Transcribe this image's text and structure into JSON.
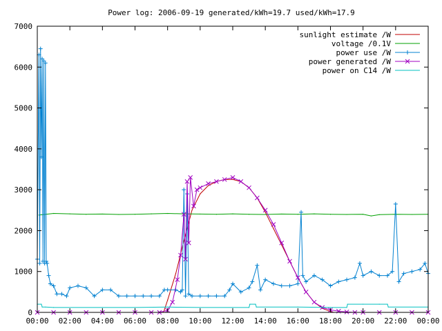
{
  "chart_data": {
    "type": "line",
    "title": "Power log: 2006-09-19 generated/kWh=19.7 used/kWh=17.9",
    "xlabel": "",
    "ylabel": "",
    "x_range": [
      "00:00",
      "24:00"
    ],
    "ylim": [
      0,
      7000
    ],
    "grid": false,
    "legend_position": "top-right",
    "x_ticks": [
      "00:00",
      "02:00",
      "04:00",
      "06:00",
      "08:00",
      "10:00",
      "12:00",
      "14:00",
      "16:00",
      "18:00",
      "20:00",
      "22:00",
      "00:00"
    ],
    "y_ticks": [
      0,
      1000,
      2000,
      3000,
      4000,
      5000,
      6000,
      7000
    ],
    "series": [
      {
        "name": "sunlight estimate /W",
        "color": "#c00000",
        "marker": "none",
        "x": [
          7.75,
          8.0,
          8.5,
          9.0,
          9.5,
          10.0,
          10.5,
          11.0,
          11.5,
          12.0,
          12.5,
          13.0,
          13.5,
          14.0,
          14.5,
          15.0,
          15.5,
          16.0,
          16.5,
          17.0,
          17.5,
          18.0,
          18.2
        ],
        "values": [
          0,
          300,
          950,
          1750,
          2500,
          2900,
          3100,
          3200,
          3250,
          3250,
          3200,
          3050,
          2800,
          2450,
          2050,
          1650,
          1250,
          850,
          500,
          250,
          100,
          20,
          0
        ]
      },
      {
        "name": "voltage /0.1V",
        "color": "#00a000",
        "marker": "none",
        "x": [
          0.1,
          1.0,
          2.0,
          3.0,
          4.0,
          5.0,
          6.0,
          7.0,
          8.0,
          9.0,
          10.0,
          11.0,
          12.0,
          13.0,
          14.0,
          15.0,
          16.0,
          17.0,
          18.0,
          19.0,
          20.0,
          20.5,
          21.0,
          22.0,
          23.0,
          24.0
        ],
        "values": [
          2380,
          2420,
          2410,
          2400,
          2405,
          2395,
          2400,
          2410,
          2420,
          2410,
          2405,
          2400,
          2410,
          2400,
          2395,
          2405,
          2400,
          2410,
          2400,
          2395,
          2400,
          2360,
          2390,
          2400,
          2395,
          2400
        ]
      },
      {
        "name": "power use /W",
        "color": "#0080d0",
        "marker": "plus",
        "x": [
          0.0,
          0.1,
          0.15,
          0.2,
          0.25,
          0.3,
          0.35,
          0.4,
          0.45,
          0.5,
          0.55,
          0.6,
          0.7,
          0.8,
          1.0,
          1.2,
          1.5,
          1.8,
          2.0,
          2.5,
          3.0,
          3.5,
          4.0,
          4.5,
          5.0,
          5.5,
          6.0,
          6.5,
          7.0,
          7.5,
          7.8,
          8.0,
          8.5,
          8.8,
          8.9,
          9.0,
          9.1,
          9.2,
          9.3,
          9.5,
          10.0,
          10.5,
          11.0,
          11.5,
          11.8,
          12.0,
          12.5,
          13.0,
          13.2,
          13.5,
          13.7,
          14.0,
          14.5,
          15.0,
          15.5,
          16.0,
          16.2,
          16.3,
          16.5,
          17.0,
          17.5,
          18.0,
          18.5,
          19.0,
          19.5,
          19.8,
          20.0,
          20.5,
          21.0,
          21.5,
          21.8,
          22.0,
          22.2,
          22.5,
          23.0,
          23.5,
          23.8,
          24.0
        ],
        "values": [
          1300,
          6300,
          1200,
          6450,
          3800,
          6200,
          1250,
          6150,
          1200,
          6100,
          1250,
          1200,
          900,
          700,
          650,
          450,
          450,
          400,
          600,
          650,
          600,
          400,
          550,
          550,
          400,
          400,
          400,
          400,
          400,
          400,
          550,
          550,
          550,
          500,
          550,
          3000,
          400,
          2900,
          450,
          400,
          400,
          400,
          400,
          400,
          550,
          700,
          500,
          600,
          750,
          1150,
          550,
          800,
          700,
          650,
          650,
          700,
          2450,
          900,
          750,
          900,
          800,
          650,
          750,
          800,
          850,
          1200,
          900,
          1000,
          900,
          900,
          1000,
          2650,
          750,
          950,
          1000,
          1050,
          1200,
          950
        ]
      },
      {
        "name": "power generated /W",
        "color": "#a000c0",
        "marker": "cross",
        "x": [
          0.0,
          1.0,
          2.0,
          3.0,
          4.0,
          5.0,
          6.0,
          7.0,
          7.5,
          8.0,
          8.3,
          8.6,
          8.8,
          9.0,
          9.1,
          9.2,
          9.3,
          9.4,
          9.6,
          9.8,
          10.0,
          10.5,
          11.0,
          11.5,
          12.0,
          12.5,
          13.0,
          13.5,
          14.0,
          14.5,
          15.0,
          15.5,
          16.0,
          16.5,
          17.0,
          17.5,
          18.0,
          18.5,
          19.0,
          19.5,
          20.0,
          21.0,
          22.0,
          23.0,
          24.0
        ],
        "values": [
          0,
          0,
          0,
          0,
          0,
          0,
          0,
          0,
          0,
          50,
          250,
          800,
          1400,
          2400,
          1300,
          3200,
          1700,
          3300,
          2600,
          3000,
          3050,
          3150,
          3200,
          3250,
          3300,
          3200,
          3050,
          2800,
          2500,
          2150,
          1700,
          1250,
          850,
          500,
          250,
          120,
          60,
          30,
          10,
          0,
          0,
          0,
          0,
          0,
          0
        ]
      },
      {
        "name": "power on C14 /W",
        "color": "#00c0c0",
        "marker": "none",
        "x": [
          0.0,
          0.25,
          0.3,
          0.5,
          1.0,
          4.0,
          6.0,
          8.0,
          10.0,
          12.0,
          13.0,
          13.05,
          13.4,
          13.45,
          16.0,
          18.0,
          19.0,
          19.05,
          20.0,
          21.0,
          21.5,
          21.55,
          24.0
        ],
        "values": [
          200,
          200,
          130,
          130,
          120,
          120,
          120,
          130,
          120,
          120,
          120,
          200,
          200,
          130,
          130,
          120,
          120,
          200,
          200,
          200,
          200,
          130,
          130
        ]
      }
    ]
  }
}
